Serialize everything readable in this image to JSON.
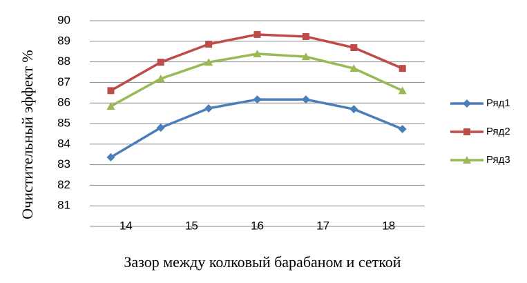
{
  "chart_data": {
    "type": "line",
    "y_label": "Очистительный эффект %",
    "x_label": "Зазор между колковый барабаном и сеткой",
    "x": [
      13.77,
      14.53,
      15.26,
      16,
      16.74,
      17.47,
      18.21
    ],
    "series": [
      {
        "name": "Ряд1",
        "color": "#4a7ebb",
        "marker": "diamond",
        "values": [
          83.36,
          84.8,
          85.74,
          86.17,
          86.17,
          85.7,
          84.73
        ]
      },
      {
        "name": "Ряд2",
        "color": "#be4b48",
        "marker": "square",
        "values": [
          86.6,
          87.98,
          88.86,
          89.33,
          89.23,
          88.69,
          87.68
        ]
      },
      {
        "name": "Ряд3",
        "color": "#98b954",
        "marker": "triangle",
        "values": [
          85.84,
          87.18,
          87.98,
          88.39,
          88.25,
          87.68,
          86.6
        ]
      }
    ],
    "xlim": [
      13.45,
      18.55
    ],
    "xticks": [
      14,
      15,
      16,
      17,
      18
    ],
    "ylim": [
      80,
      90
    ],
    "yticks": [
      81,
      82,
      83,
      84,
      85,
      86,
      87,
      88,
      89,
      90
    ],
    "grid": true,
    "legend": "right"
  }
}
